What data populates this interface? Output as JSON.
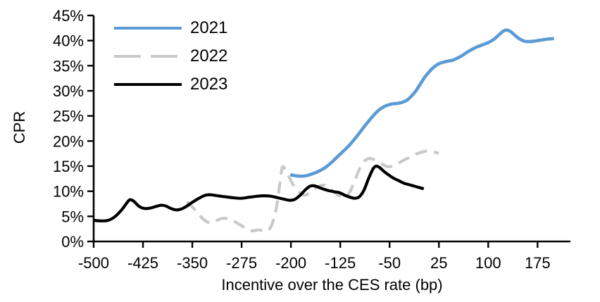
{
  "chart_data": {
    "type": "line",
    "title": "",
    "xlabel": "Incentive over the CES rate (bp)",
    "ylabel": "CPR",
    "xlim": [
      -500,
      225
    ],
    "ylim": [
      0,
      45
    ],
    "grid": false,
    "legend_position": "top-left-inside",
    "axis_color": "#000000",
    "x_ticks": [
      {
        "v": -500,
        "label": "-500"
      },
      {
        "v": -425,
        "label": "-425"
      },
      {
        "v": -350,
        "label": "-350"
      },
      {
        "v": -275,
        "label": "-275"
      },
      {
        "v": -200,
        "label": "-200"
      },
      {
        "v": -125,
        "label": "-125"
      },
      {
        "v": -50,
        "label": "-50"
      },
      {
        "v": 25,
        "label": "25"
      },
      {
        "v": 100,
        "label": "100"
      },
      {
        "v": 175,
        "label": "175"
      }
    ],
    "y_ticks": [
      {
        "v": 0,
        "label": "0%"
      },
      {
        "v": 5,
        "label": "5%"
      },
      {
        "v": 10,
        "label": "10%"
      },
      {
        "v": 15,
        "label": "15%"
      },
      {
        "v": 20,
        "label": "20%"
      },
      {
        "v": 25,
        "label": "25%"
      },
      {
        "v": 30,
        "label": "30%"
      },
      {
        "v": 35,
        "label": "35%"
      },
      {
        "v": 40,
        "label": "40%"
      },
      {
        "v": 45,
        "label": "45%"
      }
    ],
    "series": [
      {
        "name": "2021",
        "color": "#5B9BD5",
        "dash": "solid",
        "width": 4.6,
        "points": [
          [
            -201,
            13.3
          ],
          [
            -193,
            13.1
          ],
          [
            -185,
            13.0
          ],
          [
            -177,
            13.1
          ],
          [
            -169,
            13.4
          ],
          [
            -161,
            13.8
          ],
          [
            -153,
            14.3
          ],
          [
            -145,
            15.0
          ],
          [
            -137,
            15.9
          ],
          [
            -129,
            16.9
          ],
          [
            -121,
            17.9
          ],
          [
            -113,
            18.9
          ],
          [
            -105,
            20.1
          ],
          [
            -97,
            21.4
          ],
          [
            -89,
            22.8
          ],
          [
            -81,
            24.1
          ],
          [
            -73,
            25.3
          ],
          [
            -66,
            26.2
          ],
          [
            -59,
            26.8
          ],
          [
            -52,
            27.2
          ],
          [
            -45,
            27.4
          ],
          [
            -38,
            27.5
          ],
          [
            -31,
            27.7
          ],
          [
            -24,
            28.1
          ],
          [
            -17,
            28.9
          ],
          [
            -10,
            30.0
          ],
          [
            -3,
            31.4
          ],
          [
            4,
            32.8
          ],
          [
            11,
            33.9
          ],
          [
            18,
            34.8
          ],
          [
            25,
            35.4
          ],
          [
            32,
            35.7
          ],
          [
            39,
            35.9
          ],
          [
            46,
            36.1
          ],
          [
            53,
            36.5
          ],
          [
            60,
            37.0
          ],
          [
            68,
            37.7
          ],
          [
            76,
            38.3
          ],
          [
            84,
            38.8
          ],
          [
            92,
            39.2
          ],
          [
            100,
            39.6
          ],
          [
            108,
            40.2
          ],
          [
            116,
            41.1
          ],
          [
            123,
            41.9
          ],
          [
            128,
            42.1
          ],
          [
            134,
            41.8
          ],
          [
            141,
            41.0
          ],
          [
            148,
            40.3
          ],
          [
            155,
            39.9
          ],
          [
            162,
            39.8
          ],
          [
            170,
            39.9
          ],
          [
            180,
            40.1
          ],
          [
            190,
            40.3
          ],
          [
            200,
            40.4
          ]
        ]
      },
      {
        "name": "2022",
        "color": "#C9C9C9",
        "dash": "dashed",
        "width": 4.2,
        "points": [
          [
            -358,
            7.9
          ],
          [
            -348,
            6.6
          ],
          [
            -339,
            5.2
          ],
          [
            -330,
            4.1
          ],
          [
            -322,
            3.7
          ],
          [
            -313,
            4.2
          ],
          [
            -304,
            4.6
          ],
          [
            -295,
            4.5
          ],
          [
            -286,
            4.0
          ],
          [
            -276,
            3.2
          ],
          [
            -266,
            2.5
          ],
          [
            -258,
            2.1
          ],
          [
            -251,
            2.3
          ],
          [
            -244,
            2.2
          ],
          [
            -238,
            2.0
          ],
          [
            -232,
            2.6
          ],
          [
            -226,
            4.5
          ],
          [
            -221,
            7.5
          ],
          [
            -217,
            11.5
          ],
          [
            -214,
            14.3
          ],
          [
            -212,
            14.9
          ],
          [
            -209,
            14.4
          ],
          [
            -204,
            13.2
          ],
          [
            -198,
            11.6
          ],
          [
            -191,
            10.3
          ],
          [
            -184,
            9.5
          ],
          [
            -178,
            9.2
          ],
          [
            -171,
            9.8
          ],
          [
            -163,
            10.6
          ],
          [
            -155,
            11.1
          ],
          [
            -149,
            11.2
          ],
          [
            -142,
            10.6
          ],
          [
            -134,
            9.8
          ],
          [
            -127,
            9.2
          ],
          [
            -120,
            8.8
          ],
          [
            -114,
            9.2
          ],
          [
            -108,
            10.5
          ],
          [
            -101,
            12.8
          ],
          [
            -94,
            14.9
          ],
          [
            -88,
            16.0
          ],
          [
            -82,
            16.5
          ],
          [
            -76,
            16.4
          ],
          [
            -68,
            15.9
          ],
          [
            -60,
            15.3
          ],
          [
            -53,
            14.9
          ],
          [
            -46,
            15.0
          ],
          [
            -38,
            15.5
          ],
          [
            -30,
            16.1
          ],
          [
            -22,
            16.6
          ],
          [
            -14,
            17.1
          ],
          [
            -6,
            17.6
          ],
          [
            2,
            17.9
          ],
          [
            9,
            18.0
          ],
          [
            17,
            17.8
          ],
          [
            25,
            17.6
          ]
        ]
      },
      {
        "name": "2023",
        "color": "#000000",
        "dash": "solid",
        "width": 4.2,
        "points": [
          [
            -500,
            4.2
          ],
          [
            -488,
            4.1
          ],
          [
            -478,
            4.2
          ],
          [
            -468,
            4.9
          ],
          [
            -458,
            6.2
          ],
          [
            -450,
            7.6
          ],
          [
            -445,
            8.3
          ],
          [
            -439,
            8.0
          ],
          [
            -431,
            7.0
          ],
          [
            -424,
            6.6
          ],
          [
            -416,
            6.6
          ],
          [
            -407,
            6.9
          ],
          [
            -398,
            7.2
          ],
          [
            -391,
            7.1
          ],
          [
            -383,
            6.6
          ],
          [
            -375,
            6.3
          ],
          [
            -368,
            6.4
          ],
          [
            -360,
            6.9
          ],
          [
            -350,
            7.8
          ],
          [
            -340,
            8.6
          ],
          [
            -330,
            9.2
          ],
          [
            -322,
            9.3
          ],
          [
            -312,
            9.1
          ],
          [
            -300,
            8.9
          ],
          [
            -288,
            8.7
          ],
          [
            -276,
            8.6
          ],
          [
            -264,
            8.8
          ],
          [
            -252,
            9.0
          ],
          [
            -240,
            9.1
          ],
          [
            -230,
            9.0
          ],
          [
            -220,
            8.7
          ],
          [
            -210,
            8.4
          ],
          [
            -202,
            8.2
          ],
          [
            -194,
            8.4
          ],
          [
            -186,
            9.2
          ],
          [
            -178,
            10.3
          ],
          [
            -171,
            11.0
          ],
          [
            -165,
            11.1
          ],
          [
            -158,
            10.8
          ],
          [
            -150,
            10.4
          ],
          [
            -142,
            10.1
          ],
          [
            -134,
            9.9
          ],
          [
            -126,
            9.7
          ],
          [
            -118,
            9.2
          ],
          [
            -110,
            8.8
          ],
          [
            -103,
            8.6
          ],
          [
            -96,
            8.9
          ],
          [
            -89,
            10.2
          ],
          [
            -82,
            12.5
          ],
          [
            -75,
            14.5
          ],
          [
            -70,
            15.0
          ],
          [
            -65,
            14.7
          ],
          [
            -59,
            14.0
          ],
          [
            -52,
            13.3
          ],
          [
            -44,
            12.6
          ],
          [
            -36,
            12.1
          ],
          [
            -28,
            11.6
          ],
          [
            -20,
            11.3
          ],
          [
            -12,
            11.0
          ],
          [
            -4,
            10.7
          ],
          [
            2,
            10.5
          ]
        ]
      }
    ]
  }
}
